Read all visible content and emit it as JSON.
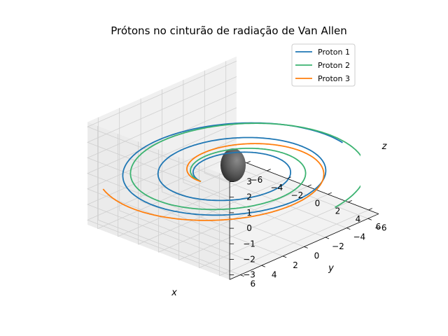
{
  "chart_data": {
    "type": "line",
    "title": "Prótons no cinturão de radiação de Van Allen",
    "xlabel": "x",
    "ylabel": "y",
    "zlabel": "z",
    "xlim": [
      -7,
      7
    ],
    "ylim": [
      -7,
      7
    ],
    "zlim": [
      -3.3,
      3.3
    ],
    "xticks": [
      "−6",
      "−4",
      "−2",
      "0",
      "2",
      "4",
      "6"
    ],
    "yticks": [
      "−6",
      "−4",
      "−2",
      "0",
      "2",
      "4",
      "6"
    ],
    "zticks": [
      "−3",
      "−2",
      "−1",
      "0",
      "1",
      "2",
      "3"
    ],
    "grid": true,
    "legend_position": "top-right",
    "central_body": {
      "shape": "sphere",
      "color": "#555555"
    },
    "series": [
      {
        "name": "Proton 1",
        "color": "#1f77b4",
        "r_start": 2.5,
        "r_end": 8.5,
        "turns": 2.5
      },
      {
        "name": "Proton 2",
        "color": "#3cb371",
        "r_start": 2.5,
        "r_end": 9.5,
        "turns": 1.7
      },
      {
        "name": "Proton 3",
        "color": "#ff7f0e",
        "r_start": 2.5,
        "r_end": 9.0,
        "turns": 1.05
      }
    ]
  }
}
